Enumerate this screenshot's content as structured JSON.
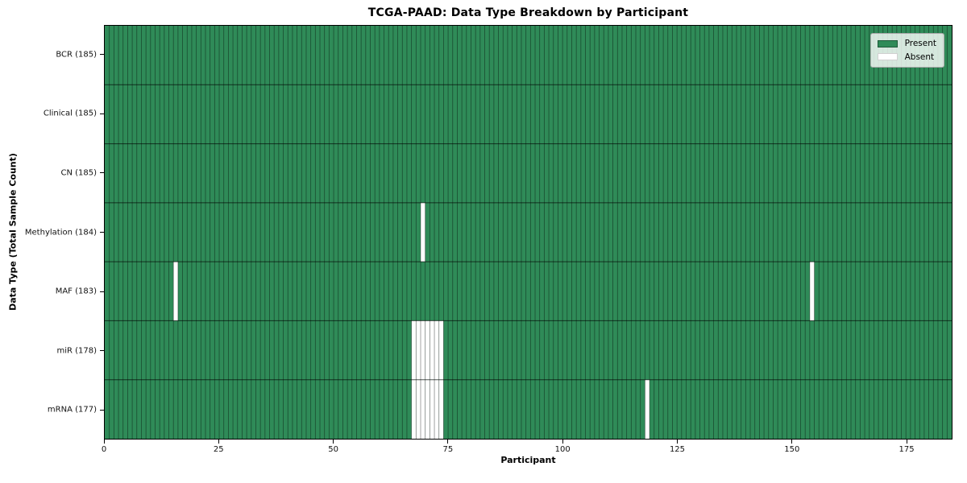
{
  "chart_data": {
    "type": "heatmap",
    "title": "TCGA-PAAD: Data Type Breakdown by Participant",
    "xlabel": "Participant",
    "ylabel": "Data Type (Total Sample Count)",
    "x_ticks": [
      0,
      25,
      50,
      75,
      100,
      125,
      150,
      175
    ],
    "xlim": [
      0,
      185
    ],
    "n_participants": 185,
    "grid": true,
    "legend_position": "upper right",
    "legend": {
      "present": "Present",
      "absent": "Absent"
    },
    "rows": [
      {
        "label": "BCR (185)",
        "data_type": "BCR",
        "total_samples": 185,
        "absent_participants": []
      },
      {
        "label": "Clinical (185)",
        "data_type": "Clinical",
        "total_samples": 185,
        "absent_participants": []
      },
      {
        "label": "CN (185)",
        "data_type": "CN",
        "total_samples": 185,
        "absent_participants": []
      },
      {
        "label": "Methylation (184)",
        "data_type": "Methylation",
        "total_samples": 184,
        "absent_participants": [
          69
        ]
      },
      {
        "label": "MAF (183)",
        "data_type": "MAF",
        "total_samples": 183,
        "absent_participants": [
          15,
          154
        ]
      },
      {
        "label": "miR (178)",
        "data_type": "miR",
        "total_samples": 178,
        "absent_participants": [
          67,
          68,
          69,
          70,
          71,
          72,
          73
        ]
      },
      {
        "label": "mRNA (177)",
        "data_type": "mRNA",
        "total_samples": 177,
        "absent_participants": [
          67,
          68,
          69,
          70,
          71,
          72,
          73,
          118
        ]
      }
    ],
    "colors": {
      "present": "#2f8b58",
      "absent": "#ffffff",
      "column_line": "rgba(0,0,0,0.45)",
      "row_line": "rgba(0,0,0,0.65)",
      "spine": "#000000",
      "tick": "#000000",
      "legend_background": "rgba(255,255,255,0.8)",
      "legend_border": "#a8a8a8"
    }
  }
}
